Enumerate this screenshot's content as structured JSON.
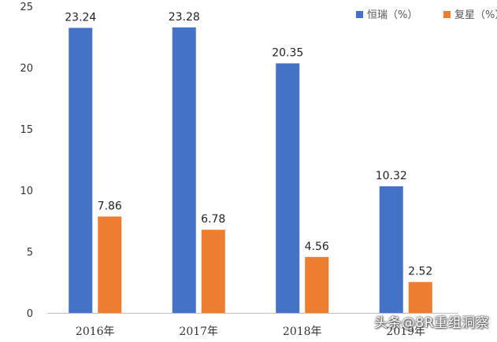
{
  "chart_data": {
    "type": "bar",
    "categories": [
      "2016年",
      "2017年",
      "2018年",
      "2019年"
    ],
    "series": [
      {
        "name": "恒瑞（%）",
        "color": "#4472C4",
        "values": [
          23.24,
          23.28,
          20.35,
          10.32
        ]
      },
      {
        "name": "复星（%）",
        "color": "#ED7D31",
        "values": [
          7.86,
          6.78,
          4.56,
          2.52
        ]
      }
    ],
    "ylim": [
      0,
      25
    ],
    "yticks": [
      0,
      5,
      10,
      15,
      20,
      25
    ],
    "grid": false,
    "legend": "top-right",
    "data_labels": true
  },
  "watermark": "头条@8R重组洞察"
}
